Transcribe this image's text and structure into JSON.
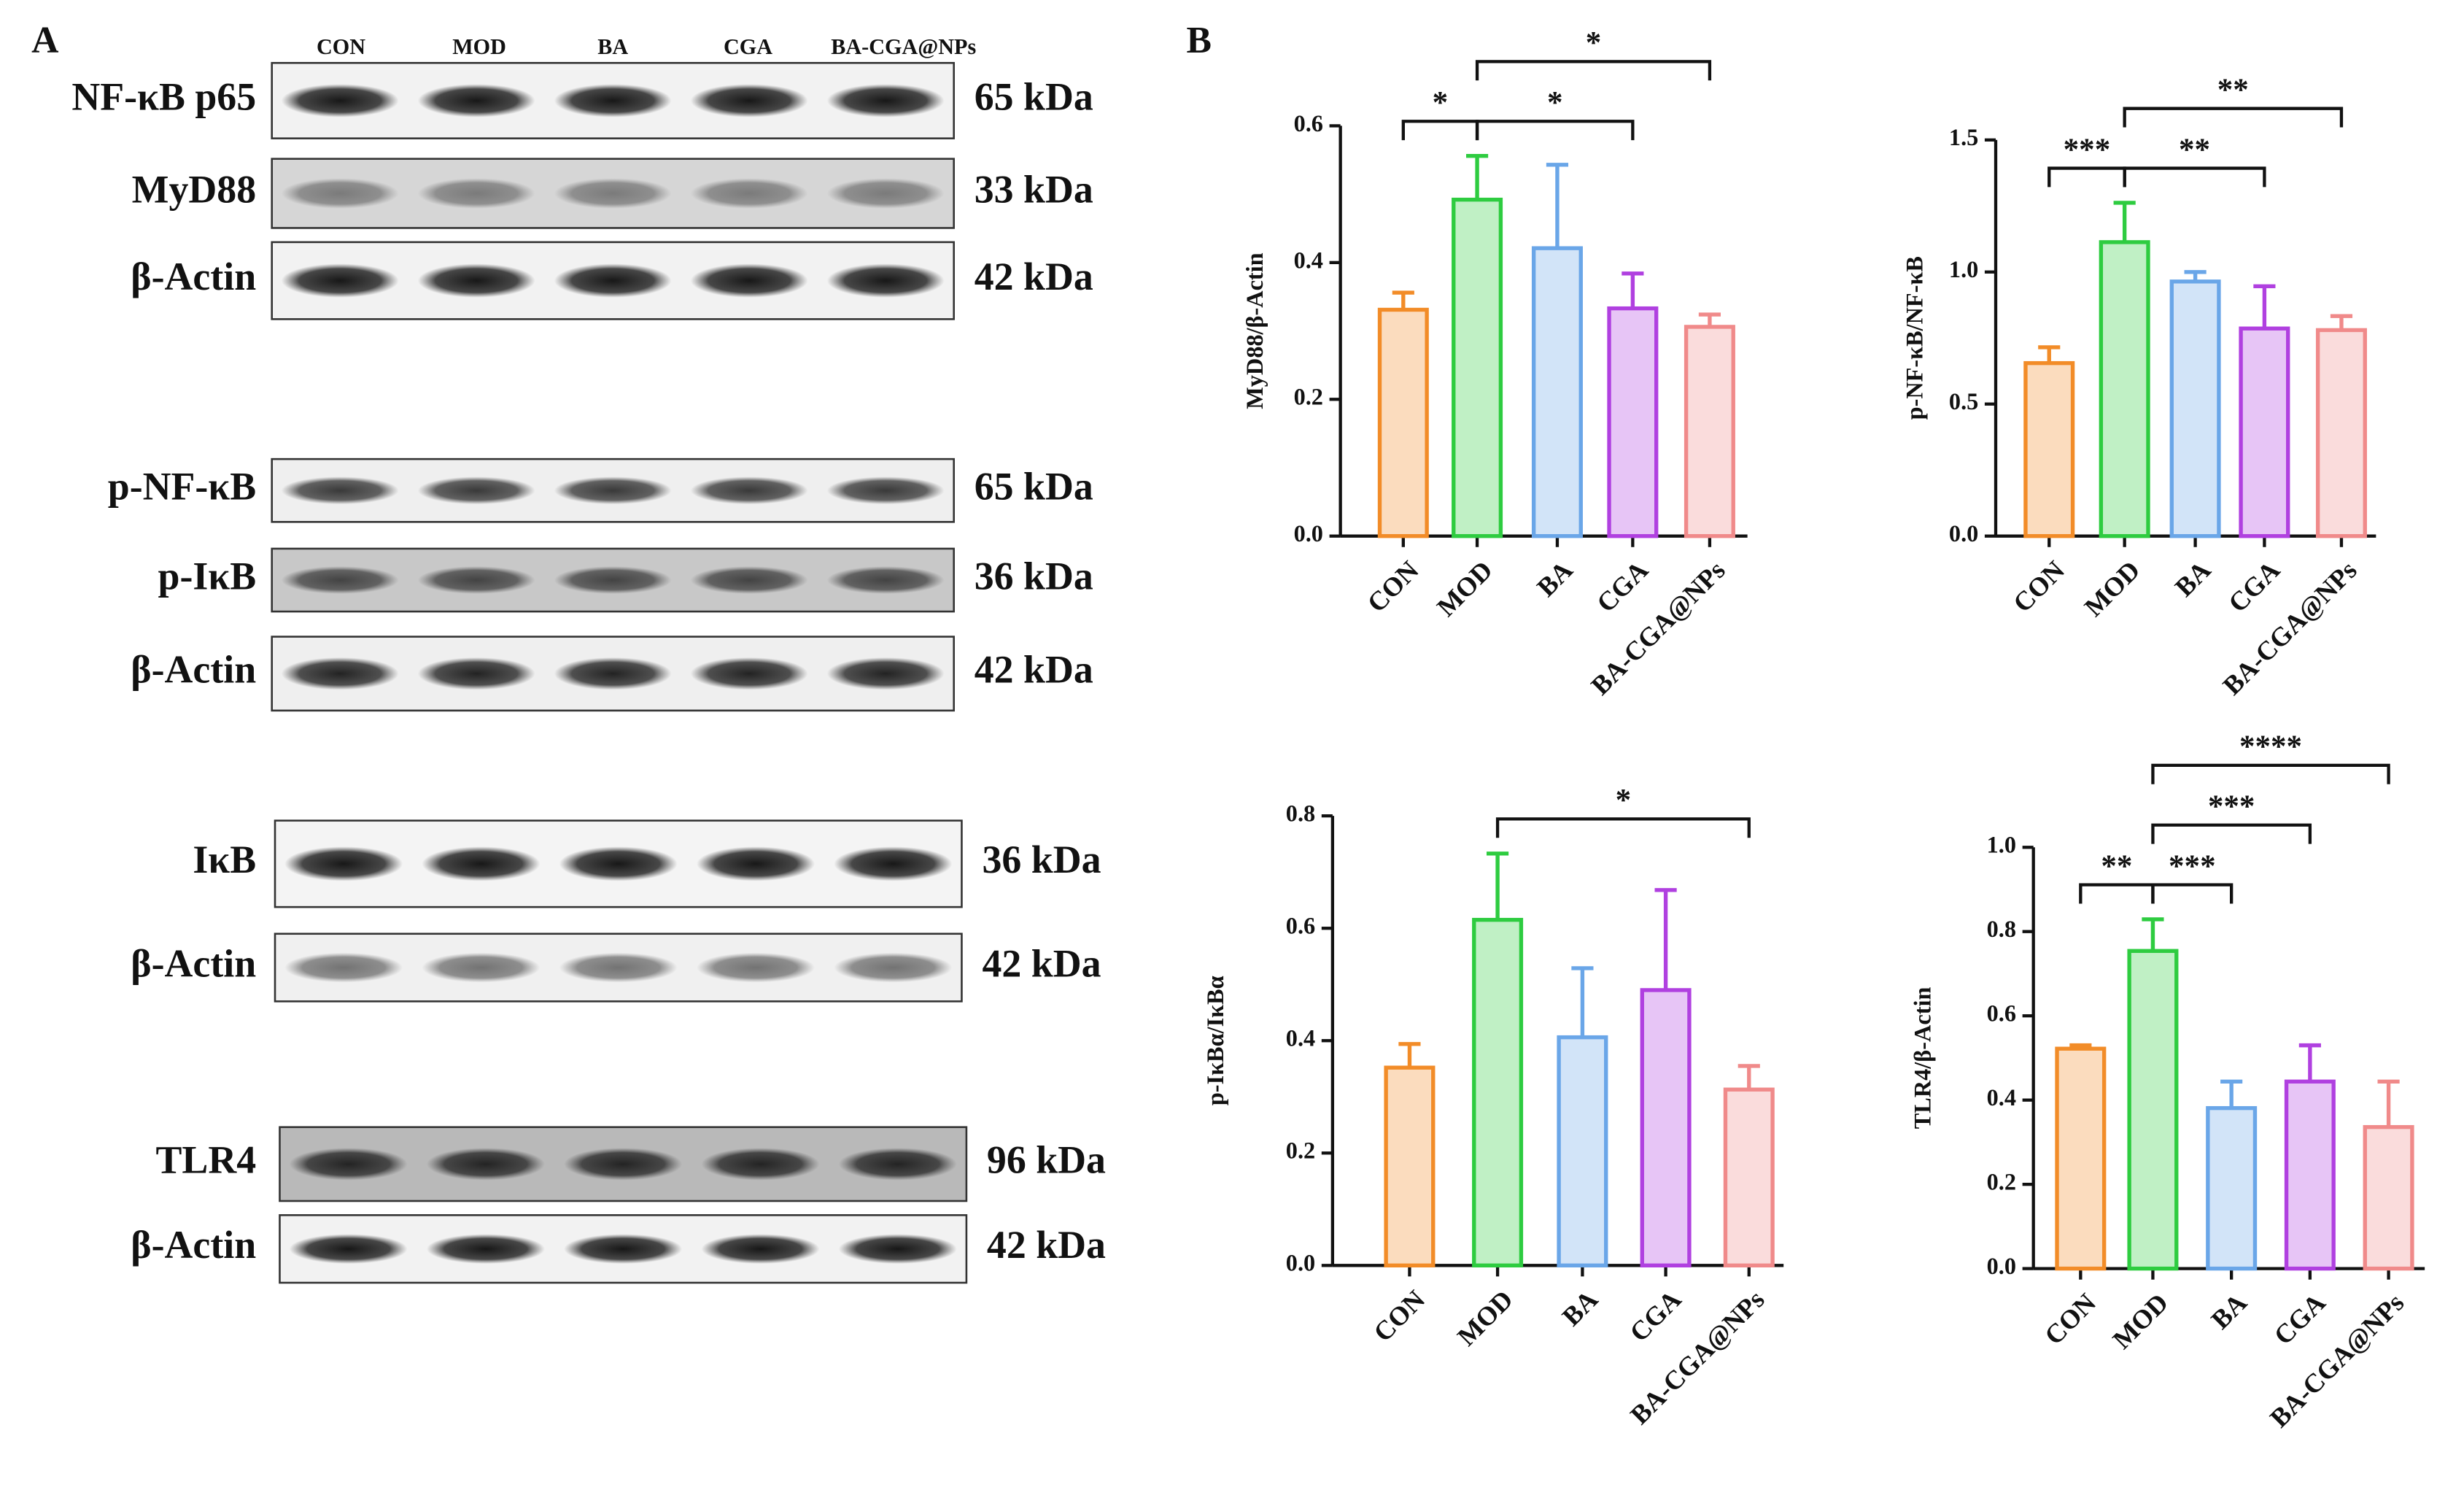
{
  "panel_a": {
    "label": "A",
    "lanes": [
      "CON",
      "MOD",
      "BA",
      "CGA",
      "BA-CGA@NPs"
    ],
    "blots": [
      {
        "protein": "NF-κB p65",
        "size": "65 kDa"
      },
      {
        "protein": "MyD88",
        "size": "33 kDa"
      },
      {
        "protein": "β-Actin",
        "size": "42 kDa"
      },
      {
        "protein": "p-NF-κB",
        "size": "65 kDa"
      },
      {
        "protein": "p-IκB",
        "size": "36 kDa"
      },
      {
        "protein": "β-Actin",
        "size": "42 kDa"
      },
      {
        "protein": "IκB",
        "size": "36 kDa"
      },
      {
        "protein": "β-Actin",
        "size": "42 kDa"
      },
      {
        "protein": "TLR4",
        "size": "96 kDa"
      },
      {
        "protein": "β-Actin",
        "size": "42 kDa"
      }
    ]
  },
  "panel_b": {
    "label": "B"
  },
  "chart_data": [
    {
      "type": "bar",
      "ylabel": "MyD88/β-Actin",
      "categories": [
        "CON",
        "MOD",
        "BA",
        "CGA",
        "BA-CGA@NPs"
      ],
      "values": [
        0.331,
        0.492,
        0.421,
        0.333,
        0.306
      ],
      "errors": [
        0.025,
        0.064,
        0.122,
        0.051,
        0.018
      ],
      "colors": [
        "#f28c28",
        "#2ecc40",
        "#6aa6e8",
        "#b040e0",
        "#f08a8a"
      ],
      "ylim": [
        0,
        0.6
      ],
      "yticks": [
        {
          "value": 0,
          "label": "0.0"
        },
        {
          "value": 0.2,
          "label": "0.2"
        },
        {
          "value": 0.4,
          "label": "0.4"
        },
        {
          "value": 0.6,
          "label": "0.6"
        }
      ],
      "significance": [
        {
          "from": "CON",
          "to": "MOD",
          "label": "*"
        },
        {
          "from": "MOD",
          "to": "CGA",
          "label": "*"
        },
        {
          "from": "MOD",
          "to": "BA-CGA@NPs",
          "label": "*"
        }
      ]
    },
    {
      "type": "bar",
      "ylabel": "p-NF-κB/NF-κB",
      "categories": [
        "CON",
        "MOD",
        "BA",
        "CGA",
        "BA-CGA@NPs"
      ],
      "values": [
        0.655,
        1.113,
        0.964,
        0.786,
        0.78
      ],
      "errors": [
        0.06,
        0.149,
        0.036,
        0.16,
        0.053
      ],
      "colors": [
        "#f28c28",
        "#2ecc40",
        "#6aa6e8",
        "#b040e0",
        "#f08a8a"
      ],
      "ylim": [
        0,
        1.5
      ],
      "yticks": [
        {
          "value": 0,
          "label": "0.0"
        },
        {
          "value": 0.5,
          "label": "0.5"
        },
        {
          "value": 1,
          "label": "1.0"
        },
        {
          "value": 1.5,
          "label": "1.5"
        }
      ],
      "significance": [
        {
          "from": "CON",
          "to": "MOD",
          "label": "***"
        },
        {
          "from": "MOD",
          "to": "CGA",
          "label": "**"
        },
        {
          "from": "MOD",
          "to": "BA-CGA@NPs",
          "label": "**"
        }
      ]
    },
    {
      "type": "bar",
      "ylabel": "p-IκBα/IκBα",
      "categories": [
        "CON",
        "MOD",
        "BA",
        "CGA",
        "BA-CGA@NPs"
      ],
      "values": [
        0.352,
        0.615,
        0.406,
        0.49,
        0.313
      ],
      "errors": [
        0.042,
        0.118,
        0.123,
        0.178,
        0.042
      ],
      "colors": [
        "#f28c28",
        "#2ecc40",
        "#6aa6e8",
        "#b040e0",
        "#f08a8a"
      ],
      "ylim": [
        0,
        0.8
      ],
      "yticks": [
        {
          "value": 0,
          "label": "0.0"
        },
        {
          "value": 0.2,
          "label": "0.2"
        },
        {
          "value": 0.4,
          "label": "0.4"
        },
        {
          "value": 0.6,
          "label": "0.6"
        },
        {
          "value": 0.8,
          "label": "0.8"
        }
      ],
      "significance": [
        {
          "from": "MOD",
          "to": "BA-CGA@NPs",
          "label": "*"
        }
      ]
    },
    {
      "type": "bar",
      "ylabel": "TLR4/β-Actin",
      "categories": [
        "CON",
        "MOD",
        "BA",
        "CGA",
        "BA-CGA@NPs"
      ],
      "values": [
        0.522,
        0.754,
        0.381,
        0.444,
        0.336
      ],
      "errors": [
        0.008,
        0.075,
        0.063,
        0.086,
        0.108
      ],
      "colors": [
        "#f28c28",
        "#2ecc40",
        "#6aa6e8",
        "#b040e0",
        "#f08a8a"
      ],
      "ylim": [
        0,
        1
      ],
      "yticks": [
        {
          "value": 0,
          "label": "0.0"
        },
        {
          "value": 0.2,
          "label": "0.2"
        },
        {
          "value": 0.4,
          "label": "0.4"
        },
        {
          "value": 0.6,
          "label": "0.6"
        },
        {
          "value": 0.8,
          "label": "0.8"
        },
        {
          "value": 1,
          "label": "1.0"
        }
      ],
      "significance": [
        {
          "from": "CON",
          "to": "MOD",
          "label": "**"
        },
        {
          "from": "MOD",
          "to": "BA",
          "label": "***"
        },
        {
          "from": "MOD",
          "to": "CGA",
          "label": "***"
        },
        {
          "from": "MOD",
          "to": "BA-CGA@NPs",
          "label": "****"
        }
      ]
    }
  ]
}
